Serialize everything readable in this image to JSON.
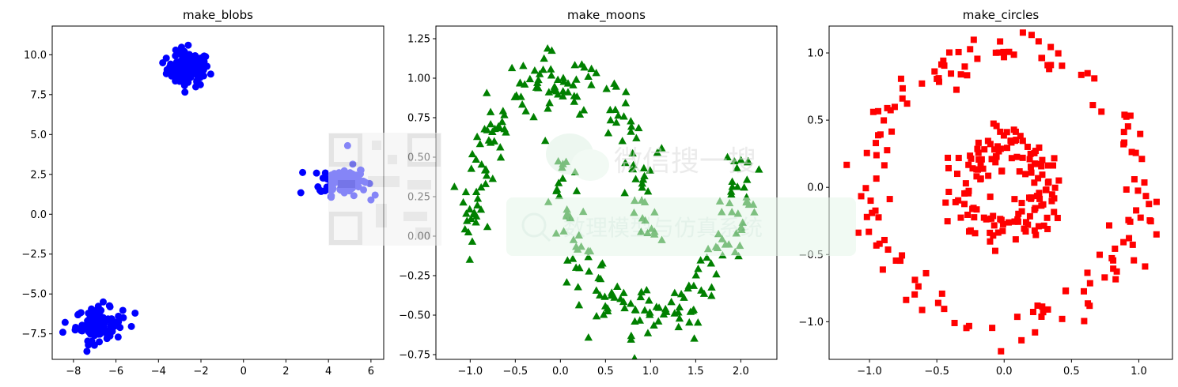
{
  "chart_data": [
    {
      "type": "scatter",
      "title": "make_blobs",
      "xlabel": "",
      "ylabel": "",
      "xlim": [
        -9.0,
        6.6
      ],
      "ylim": [
        -9.1,
        11.8
      ],
      "xticks": [
        -8,
        -6,
        -4,
        -2,
        0,
        2,
        4,
        6
      ],
      "yticks": [
        -7.5,
        -5.0,
        -2.5,
        0.0,
        2.5,
        5.0,
        7.5,
        10.0
      ],
      "marker": "circle",
      "color": "#0000ff",
      "clusters": [
        {
          "center": [
            -2.6,
            9.1
          ],
          "spread": [
            0.5,
            0.55
          ],
          "n": 100,
          "outliers": [
            [
              -3.8,
              9.5
            ],
            [
              -2.6,
              10.6
            ],
            [
              -1.9,
              9.4
            ],
            [
              -2.2,
              8.3
            ]
          ]
        },
        {
          "center": [
            4.7,
            2.1
          ],
          "spread": [
            0.55,
            0.45
          ],
          "n": 100,
          "outliers": [
            [
              4.9,
              4.3
            ],
            [
              2.7,
              1.35
            ],
            [
              6.0,
              0.9
            ],
            [
              3.6,
              1.5
            ]
          ]
        },
        {
          "center": [
            -6.8,
            -6.9
          ],
          "spread": [
            0.55,
            0.5
          ],
          "n": 100,
          "outliers": [
            [
              -5.1,
              -6.2
            ],
            [
              -8.5,
              -7.4
            ],
            [
              -6.6,
              -5.5
            ],
            [
              -7.3,
              -8.2
            ]
          ]
        }
      ],
      "points": []
    },
    {
      "type": "scatter",
      "title": "make_moons",
      "xlabel": "",
      "ylabel": "",
      "xlim": [
        -1.38,
        2.4
      ],
      "ylim": [
        -0.78,
        1.33
      ],
      "xticks": [
        -1.0,
        -0.5,
        0.0,
        0.5,
        1.0,
        1.5,
        2.0
      ],
      "yticks": [
        -0.75,
        -0.5,
        -0.25,
        0.0,
        0.25,
        0.5,
        0.75,
        1.0,
        1.25
      ],
      "marker": "triangle",
      "color": "#008000",
      "moons": {
        "n": 150,
        "noise": 0.1
      }
    },
    {
      "type": "scatter",
      "title": "make_circles",
      "xlabel": "",
      "ylabel": "",
      "xlim": [
        -1.3,
        1.25
      ],
      "ylim": [
        -1.28,
        1.2
      ],
      "xticks": [
        -1.0,
        -0.5,
        0.0,
        0.5,
        1.0
      ],
      "yticks": [
        -1.0,
        -0.5,
        0.0,
        0.5,
        1.0
      ],
      "marker": "square",
      "color": "#ff0000",
      "circles": {
        "n": 150,
        "outer_r": 1.0,
        "inner_r": 0.3,
        "noise": 0.08
      }
    }
  ],
  "watermark": {
    "line1": "微信搜一搜",
    "line2": "数理模型与仿真系统"
  }
}
